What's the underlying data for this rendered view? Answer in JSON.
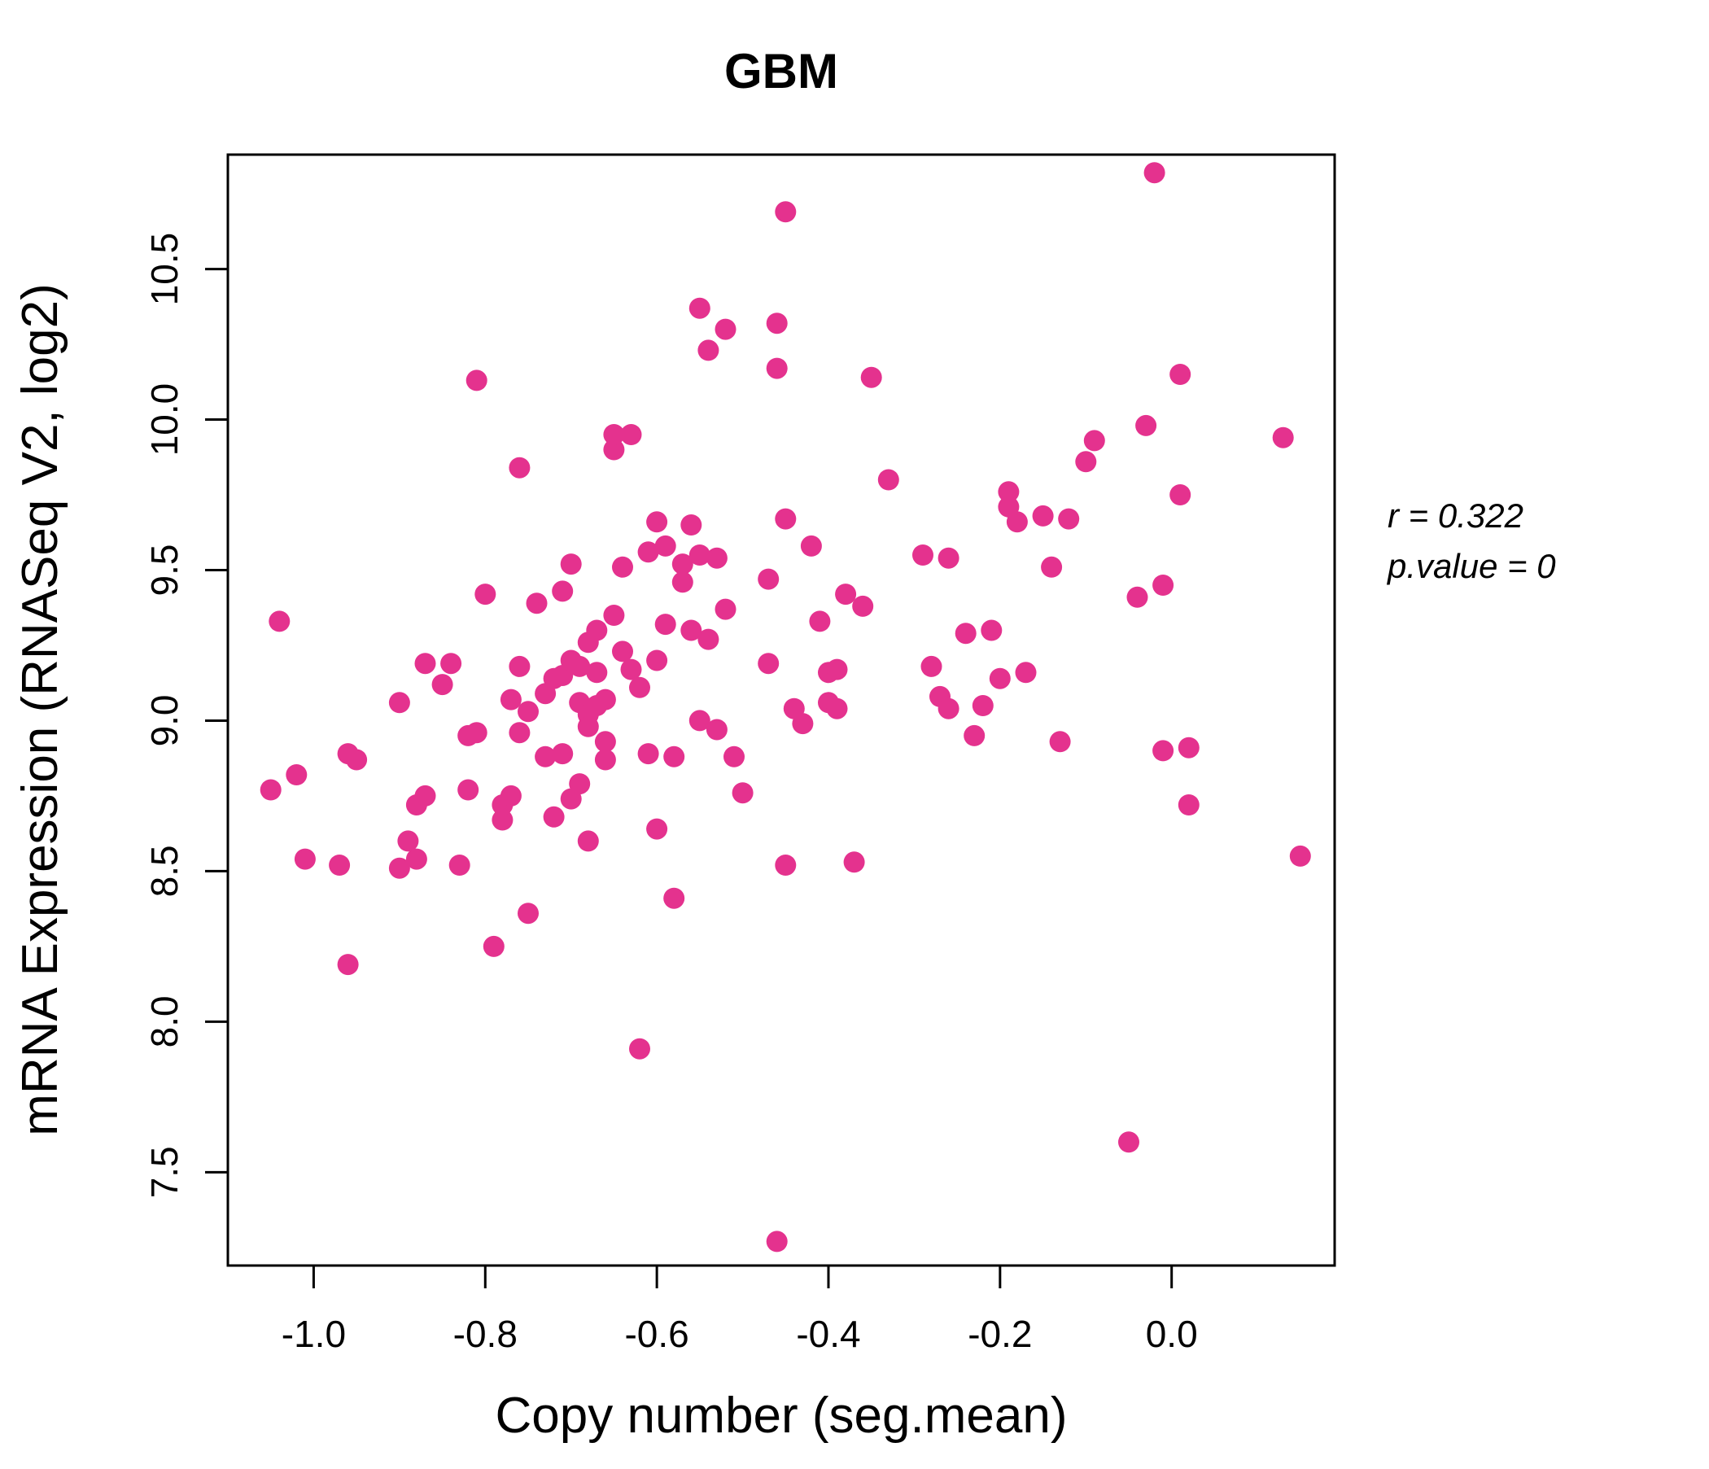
{
  "chart_data": {
    "type": "scatter",
    "title": "GBM",
    "xlabel": "Copy number (seg.mean)",
    "ylabel": "mRNA Expression (RNASeq V2, log2)",
    "annotation": {
      "line1": "r = 0.322",
      "line2": "p.value = 0"
    },
    "x_tick_values": [
      -1.0,
      -0.8,
      -0.6,
      -0.4,
      -0.2,
      0.0
    ],
    "x_tick_labels": [
      "-1.0",
      "-0.8",
      "-0.6",
      "-0.4",
      "-0.2",
      "0.0"
    ],
    "y_tick_values": [
      7.5,
      8.0,
      8.5,
      9.0,
      9.5,
      10.0,
      10.5
    ],
    "y_tick_labels": [
      "7.5",
      "8.0",
      "8.5",
      "9.0",
      "9.5",
      "10.0",
      "10.5"
    ],
    "xlim": [
      -1.1,
      0.19
    ],
    "ylim": [
      7.19,
      10.88
    ],
    "grid": false,
    "legend": "none",
    "point_color": "#E4328E",
    "title_color": "#E91E8C",
    "axis_color": "#000000",
    "points": [
      [
        -1.05,
        8.77
      ],
      [
        -1.04,
        9.33
      ],
      [
        -1.02,
        8.82
      ],
      [
        -1.01,
        8.54
      ],
      [
        -0.97,
        8.52
      ],
      [
        -0.96,
        8.19
      ],
      [
        -0.96,
        8.89
      ],
      [
        -0.95,
        8.87
      ],
      [
        -0.9,
        9.06
      ],
      [
        -0.9,
        8.51
      ],
      [
        -0.89,
        8.6
      ],
      [
        -0.88,
        8.72
      ],
      [
        -0.88,
        8.54
      ],
      [
        -0.87,
        8.75
      ],
      [
        -0.87,
        9.19
      ],
      [
        -0.85,
        9.12
      ],
      [
        -0.84,
        9.19
      ],
      [
        -0.83,
        8.52
      ],
      [
        -0.82,
        8.77
      ],
      [
        -0.82,
        8.95
      ],
      [
        -0.81,
        8.96
      ],
      [
        -0.81,
        10.13
      ],
      [
        -0.8,
        9.42
      ],
      [
        -0.79,
        8.25
      ],
      [
        -0.78,
        8.67
      ],
      [
        -0.78,
        8.72
      ],
      [
        -0.77,
        9.07
      ],
      [
        -0.77,
        8.75
      ],
      [
        -0.76,
        9.18
      ],
      [
        -0.76,
        8.96
      ],
      [
        -0.76,
        9.84
      ],
      [
        -0.75,
        8.36
      ],
      [
        -0.75,
        9.03
      ],
      [
        -0.74,
        9.39
      ],
      [
        -0.73,
        9.09
      ],
      [
        -0.73,
        8.88
      ],
      [
        -0.72,
        9.14
      ],
      [
        -0.72,
        8.68
      ],
      [
        -0.71,
        9.43
      ],
      [
        -0.71,
        9.15
      ],
      [
        -0.71,
        8.89
      ],
      [
        -0.7,
        9.2
      ],
      [
        -0.7,
        9.52
      ],
      [
        -0.7,
        8.74
      ],
      [
        -0.69,
        9.06
      ],
      [
        -0.69,
        8.79
      ],
      [
        -0.69,
        9.18
      ],
      [
        -0.68,
        9.26
      ],
      [
        -0.68,
        9.02
      ],
      [
        -0.68,
        8.98
      ],
      [
        -0.68,
        8.6
      ],
      [
        -0.67,
        9.3
      ],
      [
        -0.67,
        9.16
      ],
      [
        -0.67,
        9.05
      ],
      [
        -0.66,
        8.93
      ],
      [
        -0.66,
        9.07
      ],
      [
        -0.66,
        8.87
      ],
      [
        -0.65,
        9.9
      ],
      [
        -0.65,
        9.95
      ],
      [
        -0.65,
        9.35
      ],
      [
        -0.64,
        9.51
      ],
      [
        -0.64,
        9.23
      ],
      [
        -0.63,
        9.95
      ],
      [
        -0.63,
        9.17
      ],
      [
        -0.62,
        7.91
      ],
      [
        -0.62,
        9.11
      ],
      [
        -0.61,
        9.56
      ],
      [
        -0.61,
        8.89
      ],
      [
        -0.6,
        9.66
      ],
      [
        -0.6,
        9.2
      ],
      [
        -0.6,
        8.64
      ],
      [
        -0.59,
        9.58
      ],
      [
        -0.59,
        9.32
      ],
      [
        -0.58,
        8.41
      ],
      [
        -0.58,
        8.88
      ],
      [
        -0.57,
        9.52
      ],
      [
        -0.57,
        9.46
      ],
      [
        -0.56,
        9.65
      ],
      [
        -0.56,
        9.3
      ],
      [
        -0.55,
        10.37
      ],
      [
        -0.55,
        9.55
      ],
      [
        -0.55,
        9.0
      ],
      [
        -0.54,
        10.23
      ],
      [
        -0.54,
        9.27
      ],
      [
        -0.53,
        8.97
      ],
      [
        -0.53,
        9.54
      ],
      [
        -0.52,
        10.3
      ],
      [
        -0.52,
        9.37
      ],
      [
        -0.51,
        8.88
      ],
      [
        -0.5,
        8.76
      ],
      [
        -0.47,
        9.47
      ],
      [
        -0.47,
        9.19
      ],
      [
        -0.46,
        10.32
      ],
      [
        -0.46,
        10.17
      ],
      [
        -0.46,
        7.27
      ],
      [
        -0.45,
        10.69
      ],
      [
        -0.45,
        9.67
      ],
      [
        -0.45,
        8.52
      ],
      [
        -0.44,
        9.04
      ],
      [
        -0.43,
        8.99
      ],
      [
        -0.42,
        9.58
      ],
      [
        -0.41,
        9.33
      ],
      [
        -0.4,
        9.16
      ],
      [
        -0.4,
        9.06
      ],
      [
        -0.39,
        9.17
      ],
      [
        -0.39,
        9.04
      ],
      [
        -0.38,
        9.42
      ],
      [
        -0.37,
        8.53
      ],
      [
        -0.36,
        9.38
      ],
      [
        -0.35,
        10.14
      ],
      [
        -0.33,
        9.8
      ],
      [
        -0.29,
        9.55
      ],
      [
        -0.28,
        9.18
      ],
      [
        -0.27,
        9.08
      ],
      [
        -0.26,
        9.54
      ],
      [
        -0.26,
        9.04
      ],
      [
        -0.24,
        9.29
      ],
      [
        -0.23,
        8.95
      ],
      [
        -0.22,
        9.05
      ],
      [
        -0.21,
        9.3
      ],
      [
        -0.2,
        9.14
      ],
      [
        -0.19,
        9.76
      ],
      [
        -0.19,
        9.71
      ],
      [
        -0.18,
        9.66
      ],
      [
        -0.17,
        9.16
      ],
      [
        -0.15,
        9.68
      ],
      [
        -0.14,
        9.51
      ],
      [
        -0.13,
        8.93
      ],
      [
        -0.12,
        9.67
      ],
      [
        -0.1,
        9.86
      ],
      [
        -0.09,
        9.93
      ],
      [
        -0.05,
        7.6
      ],
      [
        -0.04,
        9.41
      ],
      [
        -0.03,
        9.98
      ],
      [
        -0.02,
        10.82
      ],
      [
        -0.01,
        9.45
      ],
      [
        -0.01,
        8.9
      ],
      [
        0.01,
        10.15
      ],
      [
        0.01,
        9.75
      ],
      [
        0.02,
        8.91
      ],
      [
        0.02,
        8.72
      ],
      [
        0.13,
        9.94
      ],
      [
        0.15,
        8.55
      ]
    ]
  }
}
